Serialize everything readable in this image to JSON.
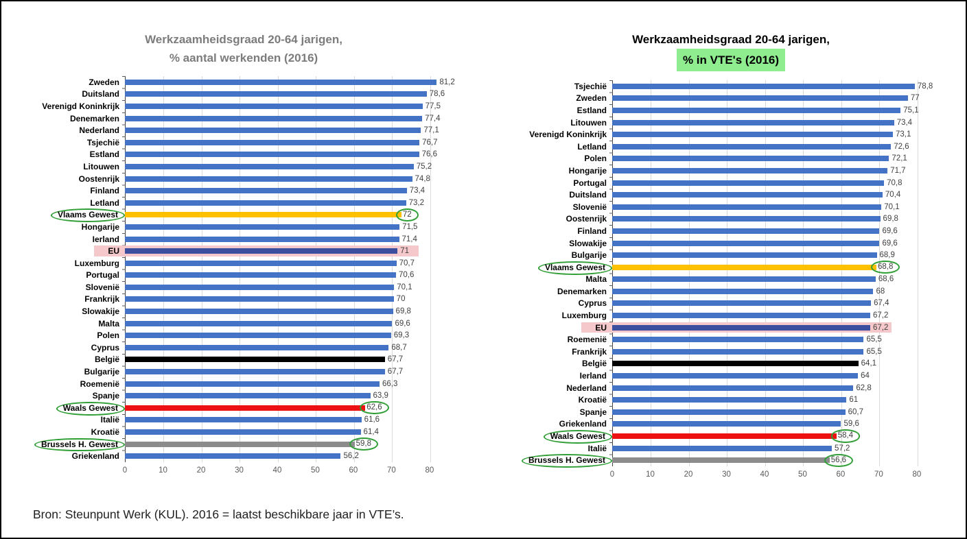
{
  "footnote": "Bron: Steunpunt Werk (KUL). 2016 = laatst beschikbare jaar in VTE’s.",
  "colors": {
    "bar_default": "#4472c4",
    "bar_eu": "#3b4f9e",
    "bar_flanders": "#ffc000",
    "bar_wallonia": "#ee1111",
    "bar_belgium": "#000000",
    "bar_brussels": "#8c8c8c",
    "eu_band": "#f5c9cb",
    "ellipse": "#2f9e35",
    "title_highlight": "#8fed8f",
    "title_gray": "#7c7c7c",
    "grid": "#d9d9d9",
    "axis_text": "#595959"
  },
  "axis": {
    "ticks": [
      0,
      10,
      20,
      30,
      40,
      50,
      60,
      70,
      80
    ],
    "render_max": 86.5
  },
  "chart_data": [
    {
      "type": "bar",
      "title_line1": "Werkzaamheidsgraad 20-64 jarigen,",
      "title_line2": "% aantal werkenden (2016)",
      "xlabel": "",
      "ylabel": "",
      "xlim": [
        0,
        80
      ],
      "grid": true,
      "rows": [
        {
          "label": "Zweden",
          "value": 81.2,
          "display": "81,2",
          "category": "default",
          "circled": false
        },
        {
          "label": "Duitsland",
          "value": 78.6,
          "display": "78,6",
          "category": "default",
          "circled": false
        },
        {
          "label": "Verenigd Koninkrijk",
          "value": 77.5,
          "display": "77,5",
          "category": "default",
          "circled": false
        },
        {
          "label": "Denemarken",
          "value": 77.4,
          "display": "77,4",
          "category": "default",
          "circled": false
        },
        {
          "label": "Nederland",
          "value": 77.1,
          "display": "77,1",
          "category": "default",
          "circled": false
        },
        {
          "label": "Tsjechië",
          "value": 76.7,
          "display": "76,7",
          "category": "default",
          "circled": false
        },
        {
          "label": "Estland",
          "value": 76.6,
          "display": "76,6",
          "category": "default",
          "circled": false
        },
        {
          "label": "Litouwen",
          "value": 75.2,
          "display": "75,2",
          "category": "default",
          "circled": false
        },
        {
          "label": "Oostenrijk",
          "value": 74.8,
          "display": "74,8",
          "category": "default",
          "circled": false
        },
        {
          "label": "Finland",
          "value": 73.4,
          "display": "73,4",
          "category": "default",
          "circled": false
        },
        {
          "label": "Letland",
          "value": 73.2,
          "display": "73,2",
          "category": "default",
          "circled": false
        },
        {
          "label": "Vlaams Gewest",
          "value": 72,
          "display": "72",
          "category": "flanders",
          "circled": true
        },
        {
          "label": "Hongarije",
          "value": 71.5,
          "display": "71,5",
          "category": "default",
          "circled": false
        },
        {
          "label": "Ierland",
          "value": 71.4,
          "display": "71,4",
          "category": "default",
          "circled": false
        },
        {
          "label": "EU",
          "value": 71,
          "display": "71",
          "category": "eu",
          "circled": false
        },
        {
          "label": "Luxemburg",
          "value": 70.7,
          "display": "70,7",
          "category": "default",
          "circled": false
        },
        {
          "label": "Portugal",
          "value": 70.6,
          "display": "70,6",
          "category": "default",
          "circled": false
        },
        {
          "label": "Slovenië",
          "value": 70.1,
          "display": "70,1",
          "category": "default",
          "circled": false
        },
        {
          "label": "Frankrijk",
          "value": 70,
          "display": "70",
          "category": "default",
          "circled": false
        },
        {
          "label": "Slowakije",
          "value": 69.8,
          "display": "69,8",
          "category": "default",
          "circled": false
        },
        {
          "label": "Malta",
          "value": 69.6,
          "display": "69,6",
          "category": "default",
          "circled": false
        },
        {
          "label": "Polen",
          "value": 69.3,
          "display": "69,3",
          "category": "default",
          "circled": false
        },
        {
          "label": "Cyprus",
          "value": 68.7,
          "display": "68,7",
          "category": "default",
          "circled": false
        },
        {
          "label": "België",
          "value": 67.7,
          "display": "67,7",
          "category": "belgium",
          "circled": false
        },
        {
          "label": "Bulgarije",
          "value": 67.7,
          "display": "67,7",
          "category": "default",
          "circled": false
        },
        {
          "label": "Roemenië",
          "value": 66.3,
          "display": "66,3",
          "category": "default",
          "circled": false
        },
        {
          "label": "Spanje",
          "value": 63.9,
          "display": "63,9",
          "category": "default",
          "circled": false
        },
        {
          "label": "Waals Gewest",
          "value": 62.6,
          "display": "62,6",
          "category": "wallonia",
          "circled": true
        },
        {
          "label": "Italië",
          "value": 61.6,
          "display": "61,6",
          "category": "default",
          "circled": false
        },
        {
          "label": "Kroatië",
          "value": 61.4,
          "display": "61,4",
          "category": "default",
          "circled": false
        },
        {
          "label": "Brussels H. Gewest",
          "value": 59.8,
          "display": "59,8",
          "category": "brussels",
          "circled": true
        },
        {
          "label": "Griekenland",
          "value": 56.2,
          "display": "56,2",
          "category": "default",
          "circled": false
        }
      ]
    },
    {
      "type": "bar",
      "title_line1": "Werkzaamheidsgraad 20-64 jarigen,",
      "title_line2": "% in VTE's (2016)",
      "xlabel": "",
      "ylabel": "",
      "xlim": [
        0,
        80
      ],
      "grid": true,
      "rows": [
        {
          "label": "Tsjechië",
          "value": 78.8,
          "display": "78,8",
          "category": "default",
          "circled": false
        },
        {
          "label": "Zweden",
          "value": 77,
          "display": "77",
          "category": "default",
          "circled": false
        },
        {
          "label": "Estland",
          "value": 75.1,
          "display": "75,1",
          "category": "default",
          "circled": false
        },
        {
          "label": "Litouwen",
          "value": 73.4,
          "display": "73,4",
          "category": "default",
          "circled": false
        },
        {
          "label": "Verenigd Koninkrijk",
          "value": 73.1,
          "display": "73,1",
          "category": "default",
          "circled": false
        },
        {
          "label": "Letland",
          "value": 72.6,
          "display": "72,6",
          "category": "default",
          "circled": false
        },
        {
          "label": "Polen",
          "value": 72.1,
          "display": "72,1",
          "category": "default",
          "circled": false
        },
        {
          "label": "Hongarije",
          "value": 71.7,
          "display": "71,7",
          "category": "default",
          "circled": false
        },
        {
          "label": "Portugal",
          "value": 70.8,
          "display": "70,8",
          "category": "default",
          "circled": false
        },
        {
          "label": "Duitsland",
          "value": 70.4,
          "display": "70,4",
          "category": "default",
          "circled": false
        },
        {
          "label": "Slovenië",
          "value": 70.1,
          "display": "70,1",
          "category": "default",
          "circled": false
        },
        {
          "label": "Oostenrijk",
          "value": 69.8,
          "display": "69,8",
          "category": "default",
          "circled": false
        },
        {
          "label": "Finland",
          "value": 69.6,
          "display": "69,6",
          "category": "default",
          "circled": false
        },
        {
          "label": "Slowakije",
          "value": 69.6,
          "display": "69,6",
          "category": "default",
          "circled": false
        },
        {
          "label": "Bulgarije",
          "value": 68.9,
          "display": "68,9",
          "category": "default",
          "circled": false
        },
        {
          "label": "Vlaams Gewest",
          "value": 68.8,
          "display": "68,8",
          "category": "flanders",
          "circled": true
        },
        {
          "label": "Malta",
          "value": 68.6,
          "display": "68,6",
          "category": "default",
          "circled": false
        },
        {
          "label": "Denemarken",
          "value": 68,
          "display": "68",
          "category": "default",
          "circled": false
        },
        {
          "label": "Cyprus",
          "value": 67.4,
          "display": "67,4",
          "category": "default",
          "circled": false
        },
        {
          "label": "Luxemburg",
          "value": 67.2,
          "display": "67,2",
          "category": "default",
          "circled": false
        },
        {
          "label": "EU",
          "value": 67.2,
          "display": "67,2",
          "category": "eu",
          "circled": false
        },
        {
          "label": "Roemenië",
          "value": 65.5,
          "display": "65,5",
          "category": "default",
          "circled": false
        },
        {
          "label": "Frankrijk",
          "value": 65.5,
          "display": "65,5",
          "category": "default",
          "circled": false
        },
        {
          "label": "België",
          "value": 64.1,
          "display": "64,1",
          "category": "belgium",
          "circled": false
        },
        {
          "label": "Ierland",
          "value": 64,
          "display": "64",
          "category": "default",
          "circled": false
        },
        {
          "label": "Nederland",
          "value": 62.8,
          "display": "62,8",
          "category": "default",
          "circled": false
        },
        {
          "label": "Kroatië",
          "value": 61,
          "display": "61",
          "category": "default",
          "circled": false
        },
        {
          "label": "Spanje",
          "value": 60.7,
          "display": "60,7",
          "category": "default",
          "circled": false
        },
        {
          "label": "Griekenland",
          "value": 59.6,
          "display": "59,6",
          "category": "default",
          "circled": false
        },
        {
          "label": "Waals Gewest",
          "value": 58.4,
          "display": "58,4",
          "category": "wallonia",
          "circled": true
        },
        {
          "label": "Italië",
          "value": 57.2,
          "display": "57,2",
          "category": "default",
          "circled": false
        },
        {
          "label": "Brussels H. Gewest",
          "value": 56.6,
          "display": "56,6",
          "category": "brussels",
          "circled": true
        }
      ]
    }
  ]
}
